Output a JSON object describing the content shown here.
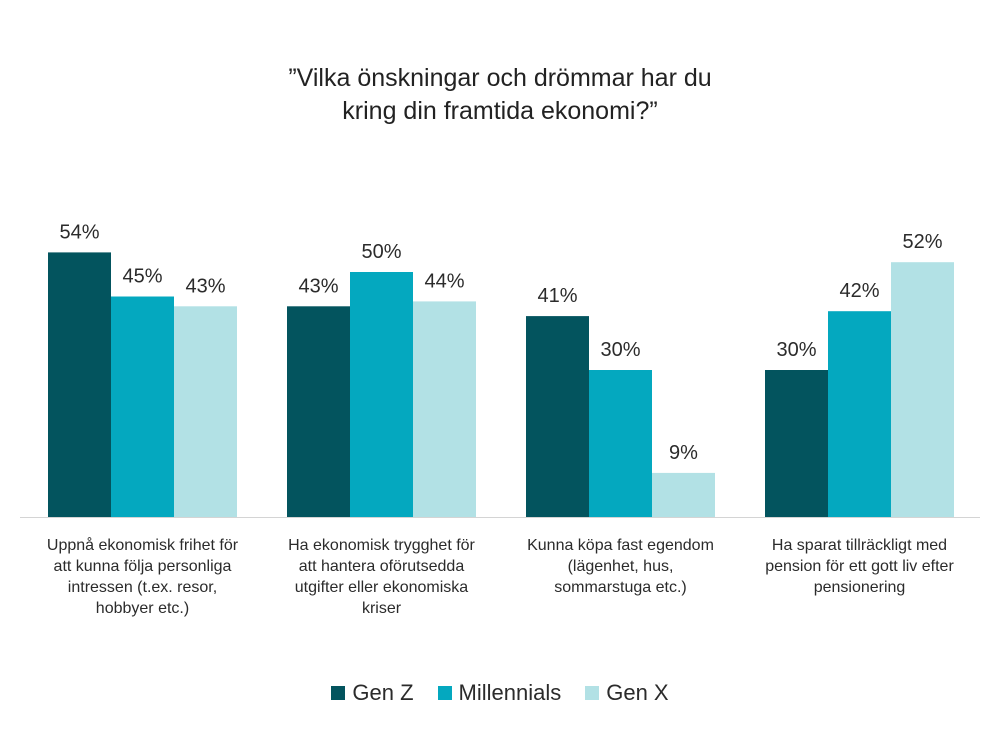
{
  "chart_data": {
    "type": "bar",
    "title_lines": [
      "”Vilka önskningar och drömmar har du",
      "kring din framtida ekonomi?”"
    ],
    "categories": [
      [
        "Uppnå ekonomisk frihet för",
        "att kunna följa personliga",
        "intressen (t.ex. resor,",
        "hobbyer etc.)"
      ],
      [
        "Ha ekonomisk trygghet för",
        "att hantera oförutsedda",
        "utgifter eller ekonomiska",
        "kriser"
      ],
      [
        "Kunna köpa fast egendom",
        "(lägenhet, hus,",
        "sommarstuga etc.)"
      ],
      [
        "Ha sparat tillräckligt med",
        "pension för ett gott liv efter",
        "pensionering"
      ]
    ],
    "series": [
      {
        "name": "Gen Z",
        "color": "#03545e",
        "values": [
          54,
          43,
          41,
          30
        ],
        "labels": [
          "54%",
          "43%",
          "41%",
          "30%"
        ]
      },
      {
        "name": "Millennials",
        "color": "#04a8bf",
        "values": [
          45,
          50,
          30,
          42
        ],
        "labels": [
          "45%",
          "50%",
          "30%",
          "42%"
        ]
      },
      {
        "name": "Gen X",
        "color": "#b2e1e5",
        "values": [
          43,
          44,
          9,
          52
        ],
        "labels": [
          "43%",
          "44%",
          "9%",
          "52%"
        ]
      }
    ],
    "ylim": [
      0,
      54
    ],
    "grid": false,
    "legend_position": "bottom"
  }
}
